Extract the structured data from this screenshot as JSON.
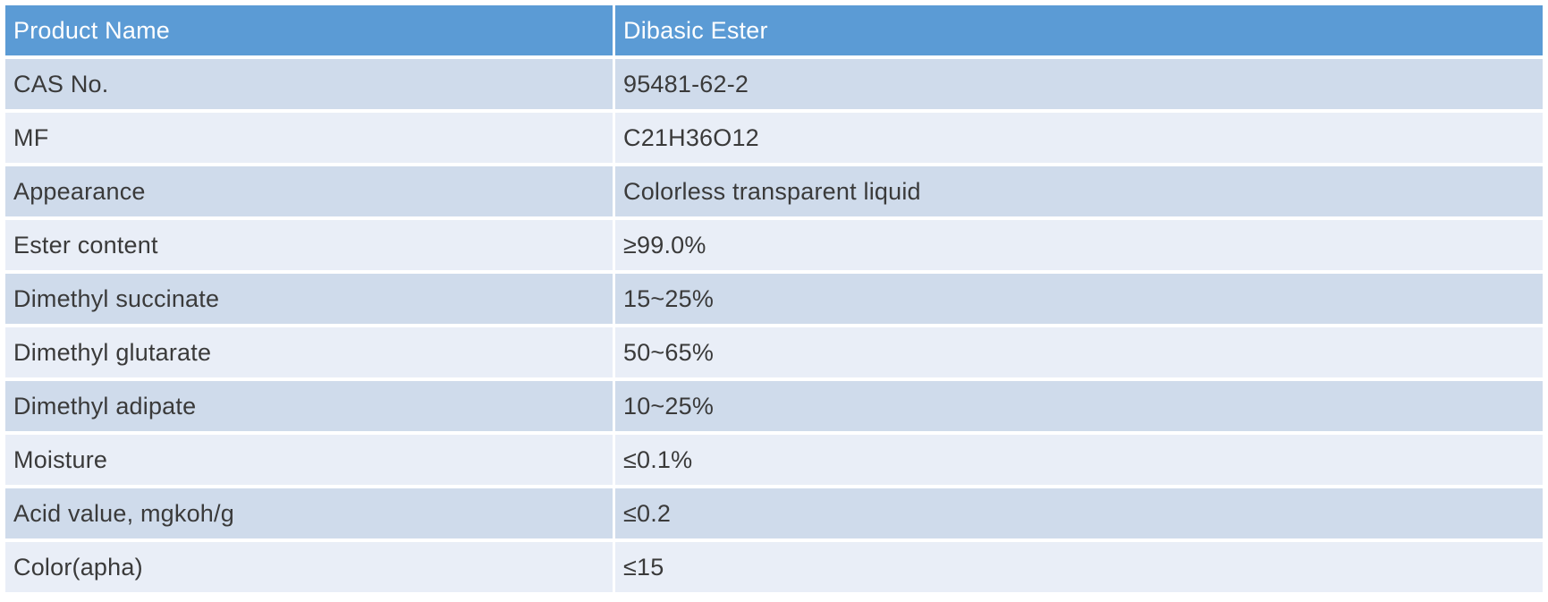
{
  "table": {
    "header": {
      "col1": "Product Name",
      "col2": "Dibasic Ester"
    },
    "rows": [
      {
        "label": "CAS No.",
        "value": "95481-62-2"
      },
      {
        "label": "MF",
        "value": "C21H36O12"
      },
      {
        "label": "Appearance",
        "value": "Colorless transparent liquid"
      },
      {
        "label": "Ester content",
        "value": "≥99.0%"
      },
      {
        "label": "Dimethyl succinate",
        "value": "15~25%"
      },
      {
        "label": "Dimethyl glutarate",
        "value": "50~65%"
      },
      {
        "label": "Dimethyl adipate",
        "value": "10~25%"
      },
      {
        "label": "Moisture",
        "value": "≤0.1%"
      },
      {
        "label": "Acid value, mgkoh/g",
        "value": "≤0.2"
      },
      {
        "label": "Color(apha)",
        "value": "≤15"
      }
    ],
    "colors": {
      "header_bg": "#5B9BD5",
      "header_text": "#FFFFFF",
      "row_dark_bg": "#CFDBEB",
      "row_light_bg": "#E9EEF7",
      "body_text": "#3A3A3A",
      "page_bg": "#FFFFFF"
    }
  }
}
